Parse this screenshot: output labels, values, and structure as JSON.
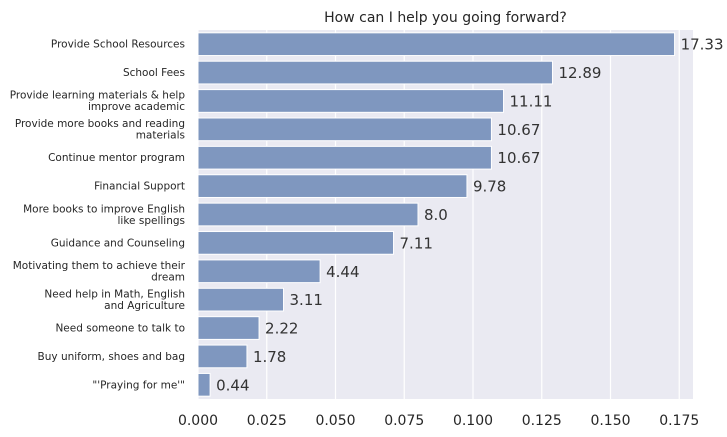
{
  "chart_data": {
    "type": "bar",
    "orientation": "horizontal",
    "title": "How can I help you going forward?",
    "xlabel": "",
    "ylabel": "",
    "xlim": [
      0,
      0.18
    ],
    "xticks": [
      "0.000",
      "0.025",
      "0.050",
      "0.075",
      "0.100",
      "0.125",
      "0.150",
      "0.175"
    ],
    "grid": true,
    "categories": [
      "Provide School Resources",
      "School Fees",
      "Provide learning materials & help\nimprove academic",
      "Provide more books and reading\nmaterials",
      "Continue mentor program",
      "Financial Support",
      "More books to improve English\nlike spellings",
      "Guidance and Counseling",
      "Motivating them to achieve their\ndream",
      "Need help in Math, English\nand Agriculture",
      "Need someone to talk to",
      "Buy uniform, shoes and bag",
      "\"'Praying for me'\""
    ],
    "values": [
      0.1733,
      0.1289,
      0.1111,
      0.1067,
      0.1067,
      0.0978,
      0.08,
      0.0711,
      0.0444,
      0.0311,
      0.0222,
      0.0178,
      0.0044
    ],
    "data_labels": [
      "17.33",
      "12.89",
      "11.11",
      "10.67",
      "10.67",
      "9.78",
      "8.0",
      "7.11",
      "4.44",
      "3.11",
      "2.22",
      "1.78",
      "0.44"
    ],
    "colors": {
      "bar": "#7f97bf",
      "bar_edge": "#ffffff",
      "plot_bg": "#eaeaf2",
      "grid": "#ffffff"
    }
  }
}
